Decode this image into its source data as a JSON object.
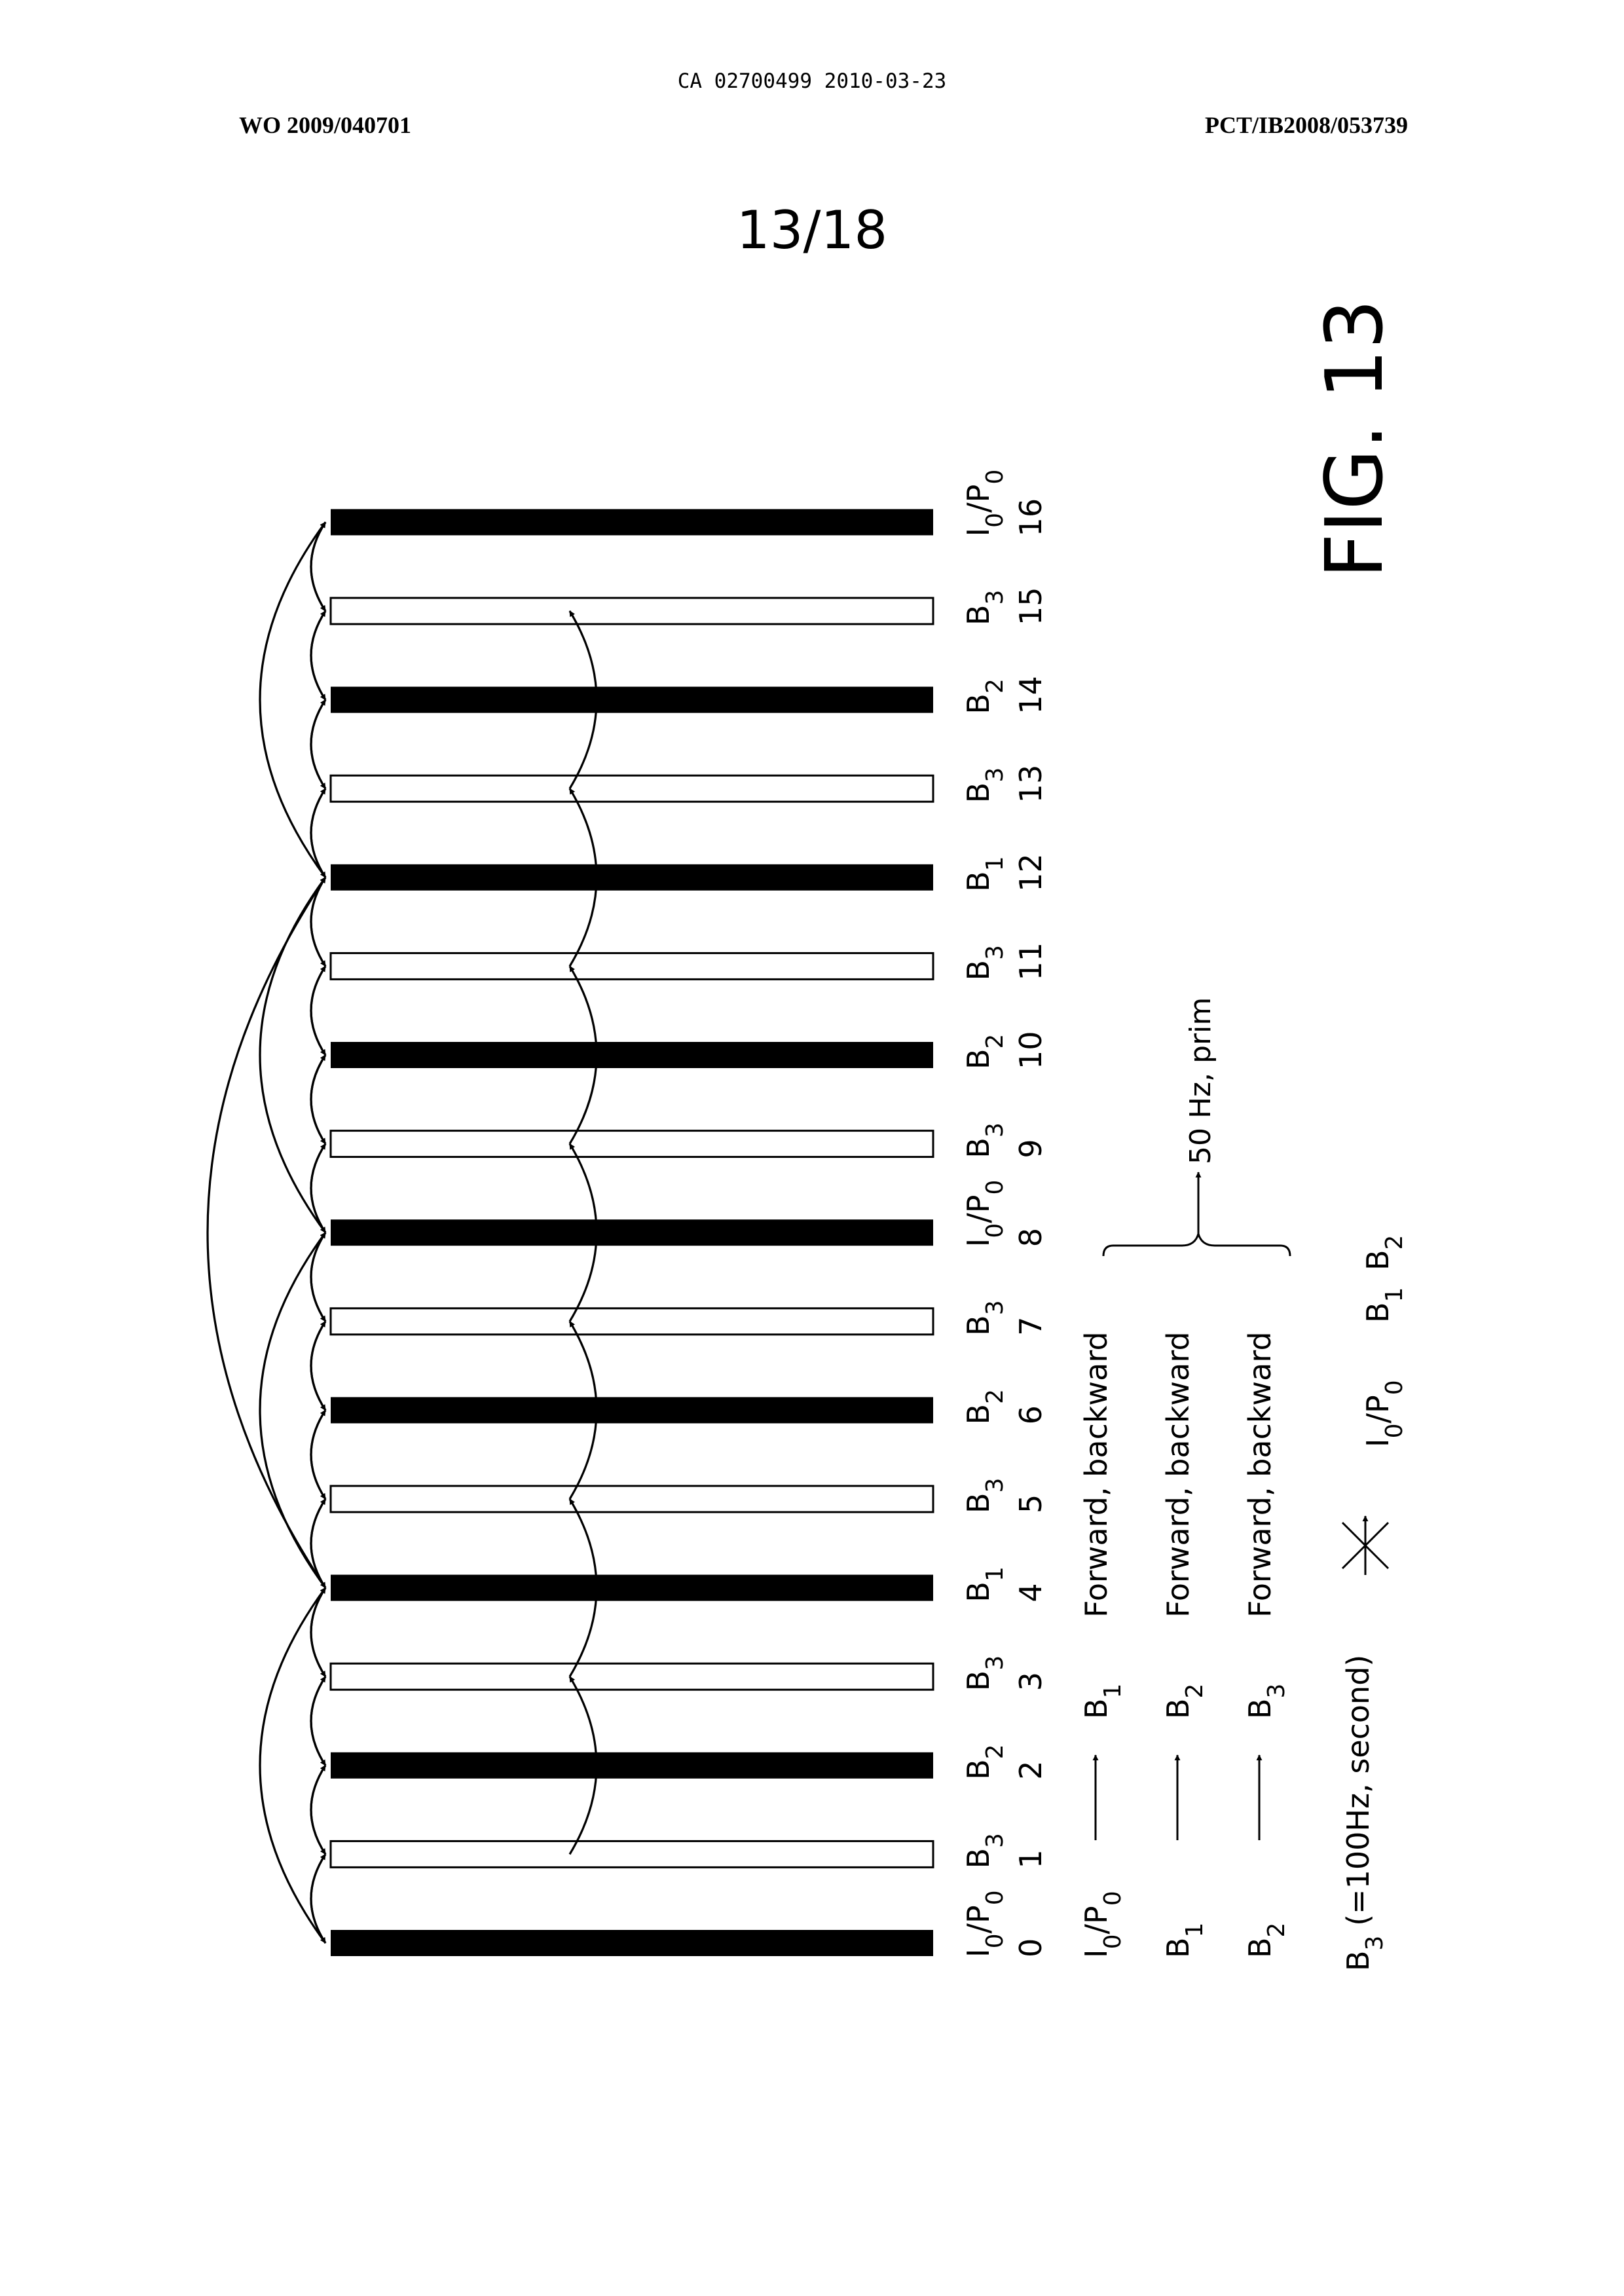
{
  "header": {
    "ca_number": "CA 02700499 2010-03-23",
    "wo_number": "WO 2009/040701",
    "pct_number": "PCT/IB2008/053739",
    "sheet": "13/18"
  },
  "figure": {
    "caption": "FIG. 13",
    "frames": [
      {
        "index": "0",
        "type": "I",
        "sub": "0",
        "type2": "/P",
        "sub2": "0",
        "filled": true
      },
      {
        "index": "1",
        "type": "B",
        "sub": "3",
        "filled": false
      },
      {
        "index": "2",
        "type": "B",
        "sub": "2",
        "filled": true
      },
      {
        "index": "3",
        "type": "B",
        "sub": "3",
        "filled": false
      },
      {
        "index": "4",
        "type": "B",
        "sub": "1",
        "filled": true
      },
      {
        "index": "5",
        "type": "B",
        "sub": "3",
        "filled": false
      },
      {
        "index": "6",
        "type": "B",
        "sub": "2",
        "filled": true
      },
      {
        "index": "7",
        "type": "B",
        "sub": "3",
        "filled": false
      },
      {
        "index": "8",
        "type": "I",
        "sub": "0",
        "type2": "/P",
        "sub2": "0",
        "filled": true
      },
      {
        "index": "9",
        "type": "B",
        "sub": "3",
        "filled": false
      },
      {
        "index": "10",
        "type": "B",
        "sub": "2",
        "filled": true
      },
      {
        "index": "11",
        "type": "B",
        "sub": "3",
        "filled": false
      },
      {
        "index": "12",
        "type": "B",
        "sub": "1",
        "filled": true
      },
      {
        "index": "13",
        "type": "B",
        "sub": "3",
        "filled": false
      },
      {
        "index": "14",
        "type": "B",
        "sub": "2",
        "filled": true
      },
      {
        "index": "15",
        "type": "B",
        "sub": "3",
        "filled": false
      },
      {
        "index": "16",
        "type": "I",
        "sub": "0",
        "type2": "/P",
        "sub2": "0",
        "filled": true
      }
    ],
    "legend": [
      {
        "from": "I",
        "from_sub": "0",
        "from_2": "/P",
        "from_sub_2": "0",
        "to": "B",
        "to_sub": "1",
        "desc": "Forward, backward"
      },
      {
        "from": "B",
        "from_sub": "1",
        "to": "B",
        "to_sub": "2",
        "desc": "Forward, backward"
      },
      {
        "from": "B",
        "from_sub": "2",
        "to": "B",
        "to_sub": "3",
        "desc": "Forward, backward"
      }
    ],
    "brace_label": "50 Hz, prim",
    "b3_note": {
      "base": "B",
      "sub": "3",
      "text": " (=100Hz, second)"
    },
    "crossed_targets": [
      {
        "base": "I",
        "sub": "0",
        "base2": "/P",
        "sub2": "0"
      },
      {
        "base": "B",
        "sub": "1"
      },
      {
        "base": "B",
        "sub": "2"
      }
    ]
  }
}
